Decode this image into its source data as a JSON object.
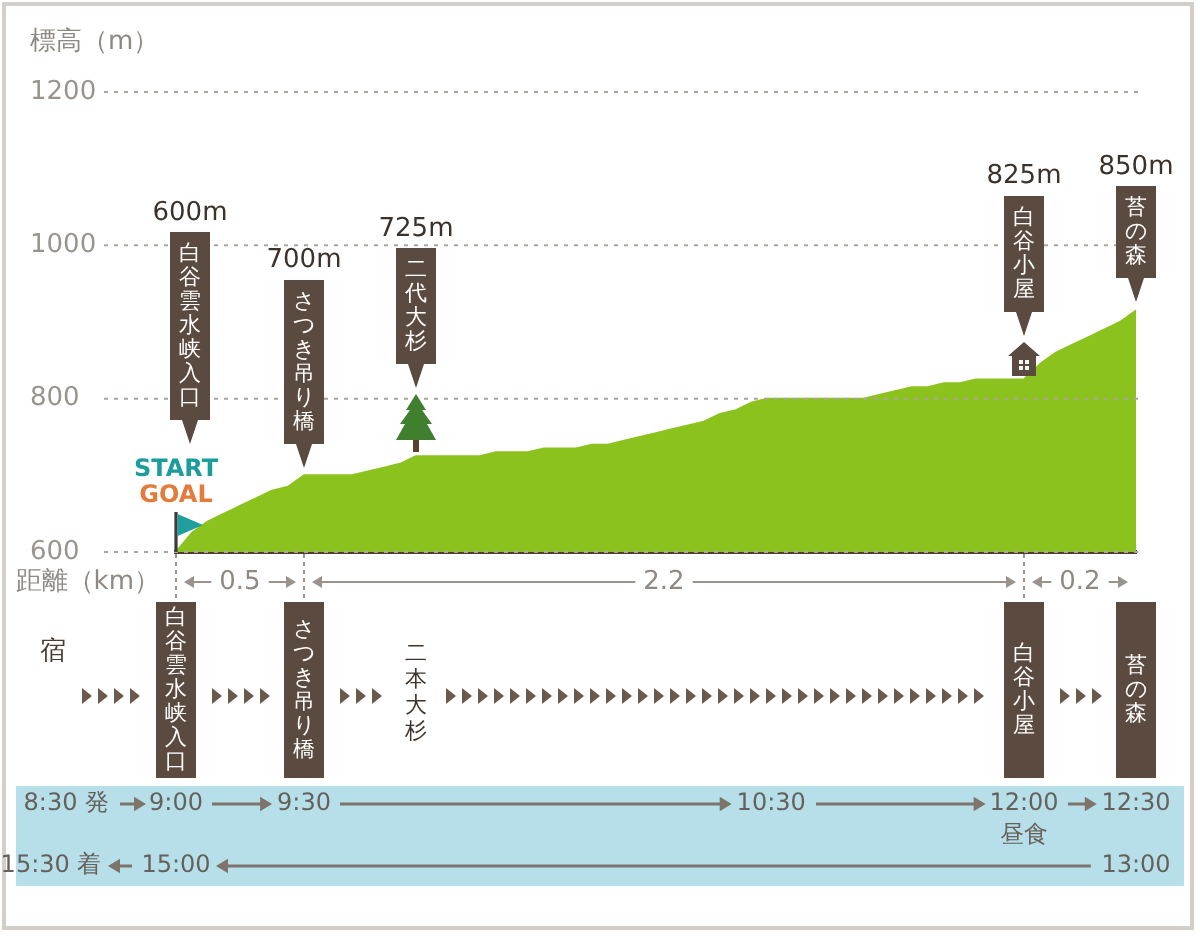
{
  "chart_data": {
    "type": "area",
    "ylabel": "標高（m）",
    "xlabel": "距離（km）",
    "categories": [
      null,
      null,
      null,
      null,
      null,
      null,
      null,
      null,
      null,
      null,
      null,
      null,
      null,
      null,
      null,
      null,
      null,
      null,
      null,
      null,
      null,
      null,
      null,
      null,
      null,
      null,
      null,
      null,
      null,
      null,
      null,
      null,
      null,
      null,
      null,
      null,
      null,
      null,
      null,
      null,
      null,
      null,
      null,
      null,
      null,
      null,
      null,
      null,
      null,
      null,
      null,
      null,
      null,
      null,
      null,
      null,
      null,
      null,
      null,
      null,
      null
    ],
    "values": [
      600,
      625,
      640,
      650,
      660,
      670,
      680,
      685,
      700,
      700,
      700,
      700,
      705,
      710,
      715,
      725,
      725,
      725,
      725,
      725,
      730,
      730,
      730,
      735,
      735,
      735,
      740,
      740,
      745,
      750,
      755,
      760,
      765,
      770,
      780,
      785,
      795,
      800,
      800,
      800,
      800,
      800,
      800,
      800,
      805,
      810,
      815,
      815,
      820,
      820,
      825,
      825,
      825,
      825,
      845,
      860,
      870,
      880,
      890,
      900,
      915
    ],
    "color": "#8cc21e",
    "ylim": [
      600,
      1200
    ],
    "yticks": [
      600,
      800,
      1000,
      1200
    ],
    "grid": "y",
    "tick_labels": "y",
    "annotations": [
      "600m",
      "白谷雲水峡入口",
      "700m",
      "さつき吊り橋",
      "725m",
      "二代大杉",
      "825m",
      "白谷小屋",
      "850m",
      "苔の森",
      "START",
      "GOAL",
      "0.5",
      "2.2",
      "0.2",
      "宿",
      "白谷雲水峡入口",
      "さつき吊り橋",
      "二本大杉",
      "白谷小屋",
      "苔の森",
      "8:30 発",
      "9:00",
      "9:30",
      "10:30",
      "12:00",
      "昼食",
      "12:30",
      "15:30 着",
      "15:00",
      "13:00"
    ]
  }
}
